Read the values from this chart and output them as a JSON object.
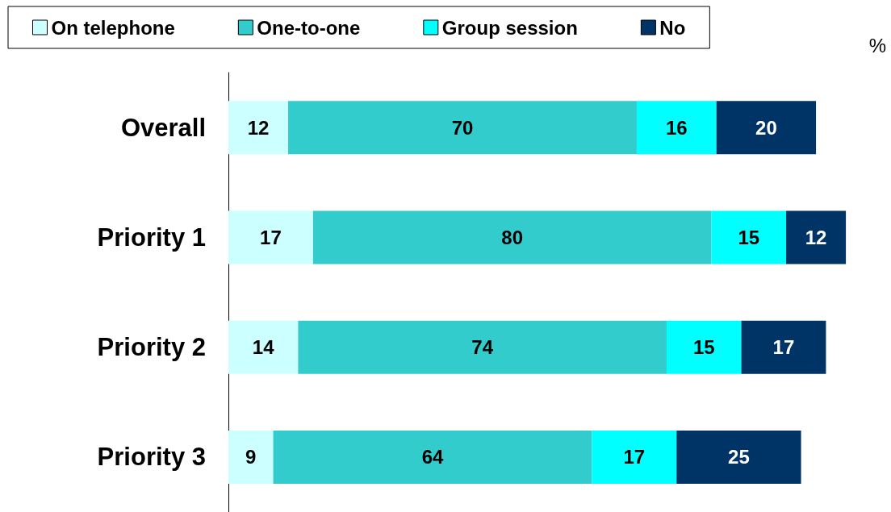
{
  "chart_data": {
    "type": "bar",
    "orientation": "horizontal",
    "stacked": true,
    "data_labels": true,
    "legend": "top",
    "grid": false,
    "tick_labels": "y",
    "categories": [
      "Overall",
      "Priority 1",
      "Priority 2",
      "Priority 3"
    ],
    "series": [
      {
        "name": "On telephone",
        "color": "#ccffff",
        "values": [
          12,
          17,
          14,
          9
        ]
      },
      {
        "name": "One-to-one",
        "color": "#33cccc",
        "values": [
          70,
          80,
          74,
          64
        ]
      },
      {
        "name": "Group session",
        "color": "#00ffff",
        "values": [
          16,
          15,
          15,
          17
        ]
      },
      {
        "name": "No",
        "color": "#003366",
        "values": [
          20,
          12,
          17,
          25
        ]
      }
    ],
    "annotations": [
      "%"
    ]
  }
}
